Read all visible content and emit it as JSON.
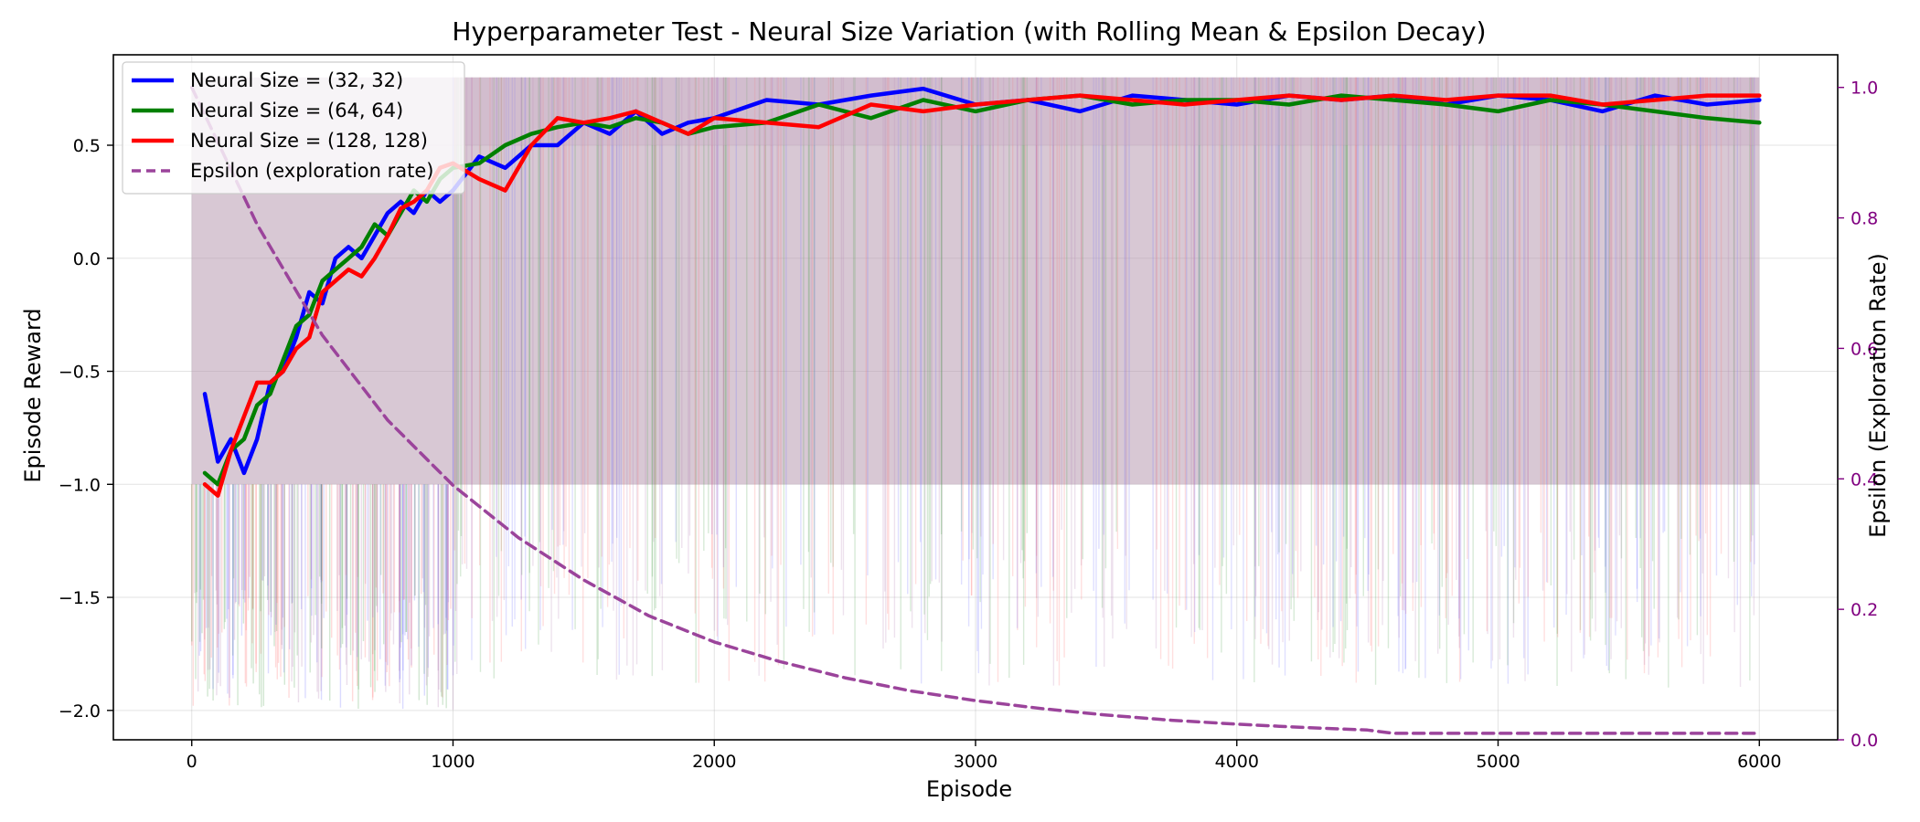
{
  "chart_data": {
    "type": "line",
    "title": "Hyperparameter Test - Neural Size Variation (with Rolling Mean & Epsilon Decay)",
    "xlabel": "Episode",
    "ylabel": "Episode Reward",
    "y2label": "Epsilon (Exploration Rate)",
    "xlim": [
      -300,
      6300
    ],
    "ylim": [
      -2.13,
      0.9
    ],
    "y2lim": [
      0.0,
      1.05
    ],
    "xticks": [
      0,
      1000,
      2000,
      3000,
      4000,
      5000,
      6000
    ],
    "yticks": [
      -2.0,
      -1.5,
      -1.0,
      -0.5,
      0.0,
      0.5
    ],
    "y2ticks": [
      0.0,
      0.2,
      0.4,
      0.6,
      0.8,
      1.0
    ],
    "grid": true,
    "legend_position": "top-left",
    "colors": {
      "series_1": "#0000ff",
      "series_2": "#008000",
      "series_3": "#ff0000",
      "epsilon": "#9b449b",
      "right_axis": "#800080"
    },
    "series": [
      {
        "name": "Neural Size = (32, 32)",
        "x": [
          50,
          100,
          150,
          200,
          250,
          300,
          350,
          400,
          450,
          500,
          550,
          600,
          650,
          700,
          750,
          800,
          850,
          900,
          950,
          1000,
          1100,
          1200,
          1300,
          1400,
          1500,
          1600,
          1700,
          1800,
          1900,
          2000,
          2200,
          2400,
          2600,
          2800,
          3000,
          3200,
          3400,
          3600,
          3800,
          4000,
          4200,
          4400,
          4600,
          4800,
          5000,
          5200,
          5400,
          5600,
          5800,
          6000
        ],
        "values": [
          -0.6,
          -0.9,
          -0.8,
          -0.95,
          -0.8,
          -0.55,
          -0.5,
          -0.35,
          -0.15,
          -0.2,
          0.0,
          0.05,
          0.0,
          0.1,
          0.2,
          0.25,
          0.2,
          0.3,
          0.25,
          0.3,
          0.45,
          0.4,
          0.5,
          0.5,
          0.6,
          0.55,
          0.65,
          0.55,
          0.6,
          0.62,
          0.7,
          0.68,
          0.72,
          0.75,
          0.68,
          0.7,
          0.65,
          0.72,
          0.7,
          0.68,
          0.72,
          0.7,
          0.72,
          0.68,
          0.72,
          0.7,
          0.65,
          0.72,
          0.68,
          0.7
        ]
      },
      {
        "name": "Neural Size = (64, 64)",
        "x": [
          50,
          100,
          150,
          200,
          250,
          300,
          350,
          400,
          450,
          500,
          550,
          600,
          650,
          700,
          750,
          800,
          850,
          900,
          950,
          1000,
          1100,
          1200,
          1300,
          1400,
          1500,
          1600,
          1700,
          1800,
          1900,
          2000,
          2200,
          2400,
          2600,
          2800,
          3000,
          3200,
          3400,
          3600,
          3800,
          4000,
          4200,
          4400,
          4600,
          4800,
          5000,
          5200,
          5400,
          5600,
          5800,
          6000
        ],
        "values": [
          -0.95,
          -1.0,
          -0.85,
          -0.8,
          -0.65,
          -0.6,
          -0.45,
          -0.3,
          -0.25,
          -0.1,
          -0.05,
          0.0,
          0.05,
          0.15,
          0.1,
          0.2,
          0.3,
          0.25,
          0.35,
          0.4,
          0.42,
          0.5,
          0.55,
          0.58,
          0.6,
          0.58,
          0.62,
          0.6,
          0.55,
          0.58,
          0.6,
          0.68,
          0.62,
          0.7,
          0.65,
          0.7,
          0.72,
          0.68,
          0.7,
          0.7,
          0.68,
          0.72,
          0.7,
          0.68,
          0.65,
          0.7,
          0.68,
          0.65,
          0.62,
          0.6
        ]
      },
      {
        "name": "Neural Size = (128, 128)",
        "x": [
          50,
          100,
          150,
          200,
          250,
          300,
          350,
          400,
          450,
          500,
          550,
          600,
          650,
          700,
          750,
          800,
          850,
          900,
          950,
          1000,
          1100,
          1200,
          1300,
          1400,
          1500,
          1600,
          1700,
          1800,
          1900,
          2000,
          2200,
          2400,
          2600,
          2800,
          3000,
          3200,
          3400,
          3600,
          3800,
          4000,
          4200,
          4400,
          4600,
          4800,
          5000,
          5200,
          5400,
          5600,
          5800,
          6000
        ],
        "values": [
          -1.0,
          -1.05,
          -0.85,
          -0.7,
          -0.55,
          -0.55,
          -0.5,
          -0.4,
          -0.35,
          -0.15,
          -0.1,
          -0.05,
          -0.08,
          0.0,
          0.1,
          0.22,
          0.25,
          0.3,
          0.4,
          0.42,
          0.35,
          0.3,
          0.5,
          0.62,
          0.6,
          0.62,
          0.65,
          0.6,
          0.55,
          0.62,
          0.6,
          0.58,
          0.68,
          0.65,
          0.68,
          0.7,
          0.72,
          0.7,
          0.68,
          0.7,
          0.72,
          0.7,
          0.72,
          0.7,
          0.72,
          0.72,
          0.68,
          0.7,
          0.72,
          0.72
        ]
      },
      {
        "name": "Epsilon (exploration rate)",
        "axis": "right",
        "style": "dashed",
        "x": [
          0,
          250,
          500,
          750,
          1000,
          1250,
          1500,
          1750,
          2000,
          2250,
          2500,
          2750,
          3000,
          3250,
          3500,
          3750,
          4000,
          4250,
          4500,
          4600,
          5000,
          5500,
          6000
        ],
        "values": [
          1.0,
          0.79,
          0.62,
          0.49,
          0.39,
          0.31,
          0.245,
          0.19,
          0.15,
          0.12,
          0.095,
          0.075,
          0.06,
          0.048,
          0.038,
          0.03,
          0.024,
          0.019,
          0.015,
          0.01,
          0.01,
          0.01,
          0.01
        ]
      }
    ]
  }
}
